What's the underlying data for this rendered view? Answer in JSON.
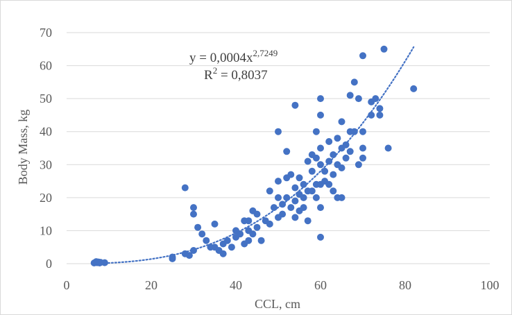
{
  "chart_data": {
    "type": "scatter",
    "title": "",
    "xlabel": "CCL, cm",
    "ylabel": "Body Mass, kg",
    "xlim": [
      0,
      100
    ],
    "ylim": [
      0,
      70
    ],
    "x_ticks": [
      0,
      20,
      40,
      60,
      80,
      100
    ],
    "y_ticks": [
      0,
      10,
      20,
      30,
      40,
      50,
      60,
      70
    ],
    "grid": "horizontal",
    "marker_color": "#4472c4",
    "trendline": {
      "type": "power",
      "coefficient": 0.0004,
      "exponent": 2.7249,
      "x_range": [
        9,
        82
      ],
      "style": "dotted",
      "equation_prefix": "y = 0,0004x",
      "equation_exponent": "2,7249",
      "r2_prefix": "R",
      "r2_sup": "2",
      "r2_value": " = 0,8037"
    },
    "points": [
      [
        6.5,
        0.2
      ],
      [
        6.8,
        0.4
      ],
      [
        7,
        0.6
      ],
      [
        7.2,
        0.3
      ],
      [
        7.5,
        0.5
      ],
      [
        7.8,
        0.2
      ],
      [
        8,
        0.4
      ],
      [
        9,
        0.3
      ],
      [
        25,
        1.5
      ],
      [
        25,
        2
      ],
      [
        28,
        23
      ],
      [
        28,
        3
      ],
      [
        29,
        2.5
      ],
      [
        30,
        17
      ],
      [
        30,
        15
      ],
      [
        30,
        4
      ],
      [
        31,
        11
      ],
      [
        32,
        9
      ],
      [
        33,
        7
      ],
      [
        34,
        5
      ],
      [
        35,
        12
      ],
      [
        35,
        5
      ],
      [
        36,
        4
      ],
      [
        37,
        6
      ],
      [
        37,
        3
      ],
      [
        38,
        7
      ],
      [
        39,
        5
      ],
      [
        40,
        10
      ],
      [
        40,
        8
      ],
      [
        41,
        9
      ],
      [
        42,
        6
      ],
      [
        42,
        13
      ],
      [
        43,
        10
      ],
      [
        43,
        7
      ],
      [
        43,
        13
      ],
      [
        44,
        16
      ],
      [
        44,
        9
      ],
      [
        45,
        15
      ],
      [
        45,
        11
      ],
      [
        46,
        7
      ],
      [
        47,
        13
      ],
      [
        48,
        22
      ],
      [
        48,
        12
      ],
      [
        49,
        17
      ],
      [
        50,
        40
      ],
      [
        50,
        25
      ],
      [
        50,
        20
      ],
      [
        50,
        14
      ],
      [
        51,
        18
      ],
      [
        51,
        15
      ],
      [
        52,
        34
      ],
      [
        52,
        26
      ],
      [
        52,
        20
      ],
      [
        53,
        27
      ],
      [
        53,
        17
      ],
      [
        54,
        48
      ],
      [
        54,
        23
      ],
      [
        54,
        19
      ],
      [
        54,
        14
      ],
      [
        55,
        26
      ],
      [
        55,
        21
      ],
      [
        55,
        16
      ],
      [
        56,
        24
      ],
      [
        56,
        20
      ],
      [
        56,
        17
      ],
      [
        57,
        31
      ],
      [
        57,
        22
      ],
      [
        57,
        13
      ],
      [
        58,
        33
      ],
      [
        58,
        28
      ],
      [
        58,
        22
      ],
      [
        59,
        40
      ],
      [
        59,
        32
      ],
      [
        59,
        24
      ],
      [
        59,
        20
      ],
      [
        60,
        50
      ],
      [
        60,
        45
      ],
      [
        60,
        35
      ],
      [
        60,
        30
      ],
      [
        60,
        24
      ],
      [
        60,
        17
      ],
      [
        60,
        8
      ],
      [
        61,
        28
      ],
      [
        61,
        25
      ],
      [
        62,
        37
      ],
      [
        62,
        31
      ],
      [
        62,
        24
      ],
      [
        63,
        33
      ],
      [
        63,
        27
      ],
      [
        63,
        22
      ],
      [
        64,
        38
      ],
      [
        64,
        30
      ],
      [
        64,
        20
      ],
      [
        65,
        43
      ],
      [
        65,
        35
      ],
      [
        65,
        29
      ],
      [
        65,
        20
      ],
      [
        66,
        36
      ],
      [
        66,
        32
      ],
      [
        67,
        51
      ],
      [
        67,
        40
      ],
      [
        67,
        34
      ],
      [
        68,
        55
      ],
      [
        68,
        40
      ],
      [
        69,
        50
      ],
      [
        69,
        30
      ],
      [
        70,
        63
      ],
      [
        70,
        40
      ],
      [
        70,
        35
      ],
      [
        70,
        32
      ],
      [
        72,
        45
      ],
      [
        72,
        49
      ],
      [
        73,
        50
      ],
      [
        74,
        45
      ],
      [
        74,
        47
      ],
      [
        75,
        65
      ],
      [
        76,
        35
      ],
      [
        82,
        53
      ]
    ]
  }
}
